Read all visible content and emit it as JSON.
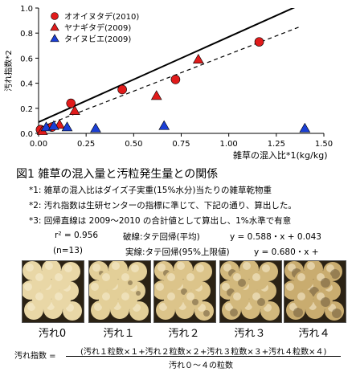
{
  "chart_data": {
    "type": "scatter",
    "xlabel": "雑草の混入比*1(kg/kg)",
    "ylabel": "汚れ指数*2",
    "xlim": [
      0,
      1.5
    ],
    "ylim": [
      0,
      1.0
    ],
    "xticks": [
      "0.00",
      "0.25",
      "0.50",
      "0.75",
      "1.00",
      "1.25",
      "1.50"
    ],
    "yticks": [
      "0.0",
      "0.2",
      "0.4",
      "0.6",
      "0.8",
      "1.0"
    ],
    "legend_position": "top-left",
    "series": [
      {
        "name": "オオイヌタデ(2010)",
        "marker": "circle",
        "color": "#e11b1b",
        "points": [
          [
            0.01,
            0.03
          ],
          [
            0.07,
            0.05
          ],
          [
            0.17,
            0.24
          ],
          [
            0.44,
            0.35
          ],
          [
            0.72,
            0.43
          ],
          [
            1.16,
            0.73
          ]
        ]
      },
      {
        "name": "ヤナギタデ(2009)",
        "marker": "triangle",
        "color": "#e11b1b",
        "points": [
          [
            0.02,
            0.02
          ],
          [
            0.11,
            0.07
          ],
          [
            0.19,
            0.18
          ],
          [
            0.62,
            0.3
          ],
          [
            0.84,
            0.59
          ]
        ]
      },
      {
        "name": "タイヌビエ(2009)",
        "marker": "triangle",
        "color": "#1a3fd6",
        "points": [
          [
            0.04,
            0.05
          ],
          [
            0.08,
            0.06
          ],
          [
            0.15,
            0.05
          ],
          [
            0.3,
            0.04
          ],
          [
            0.66,
            0.06
          ],
          [
            1.4,
            0.04
          ]
        ]
      }
    ],
    "lines": [
      {
        "label": "回帰(平均)",
        "style": "dashed",
        "slope": 0.588,
        "intercept": 0.043,
        "x_range": [
          0,
          1.38
        ]
      },
      {
        "label": "タテ回帰(95%上限値)",
        "style": "solid",
        "slope": 0.68,
        "intercept": 0.09,
        "x_range": [
          0,
          1.38
        ]
      }
    ]
  },
  "caption": "図1 雑草の混入量と汚粒発生量との関係",
  "notes": [
    "*1: 雑草の混入比はダイズ子実重(15%水分)当たりの雑草乾物重",
    "*2: 汚れ指数は生研センターの指標に準じて、下記の通り、算出した。",
    "*3: 回帰直線は 2009～2010 の合計値として算出し、1%水準で有意"
  ],
  "stats": {
    "r2": "r² = 0.956",
    "dashed_label": "破線:タテ回帰(平均)",
    "dashed_eq": "y = 0.588・x + 0.043",
    "n": "(n=13)",
    "solid_label": "実線:タテ回帰(95%上限値)",
    "solid_eq": "y = 0.680・x +"
  },
  "photos": [
    {
      "label": "汚れ0",
      "stain": 0
    },
    {
      "label": "汚れ１",
      "stain": 1
    },
    {
      "label": "汚れ２",
      "stain": 2
    },
    {
      "label": "汚れ３",
      "stain": 3
    },
    {
      "label": "汚れ４",
      "stain": 4
    }
  ],
  "formula": {
    "lhs": "汚れ指数 =",
    "numerator": "(汚れ１粒数×１+汚れ２粒数×２+汚れ３粒数×３+汚れ４粒数×４)",
    "denominator": "汚れ０～４の粒数"
  }
}
